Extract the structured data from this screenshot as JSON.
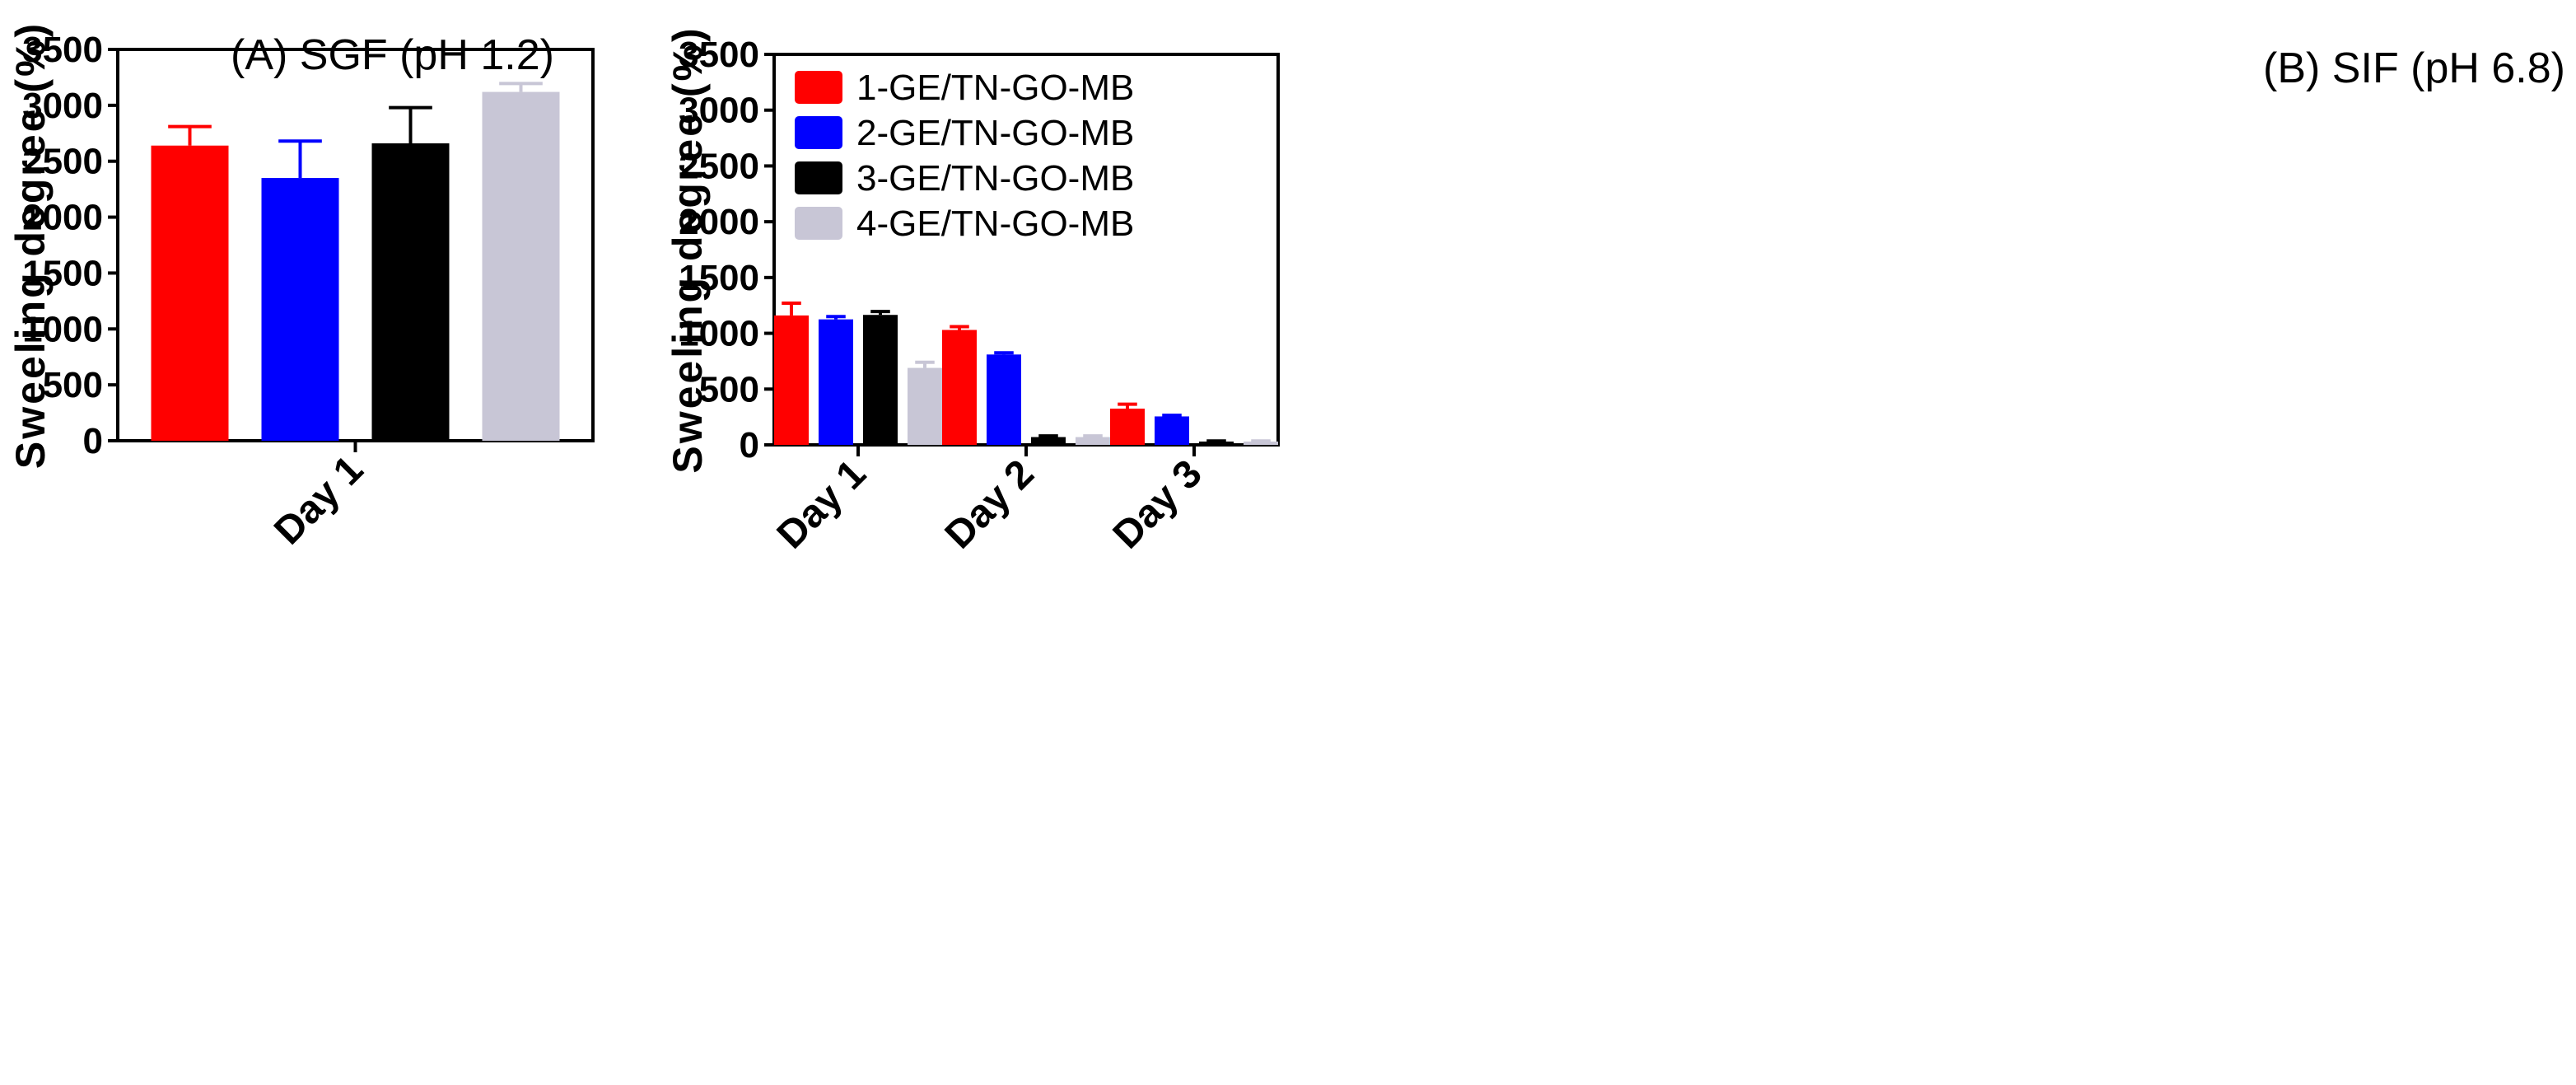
{
  "figure": {
    "panels": [
      {
        "title": "(A) SGF (pH 1.2)"
      },
      {
        "title": "(B) SIF (pH 6.8)"
      }
    ]
  },
  "chart_data": [
    {
      "type": "bar",
      "title": "(A) SGF (pH 1.2)",
      "xlabel": "",
      "ylabel": "Sweeling degree (%)",
      "ylim": [
        0,
        3500
      ],
      "yticks": [
        0,
        500,
        1000,
        1500,
        2000,
        2500,
        3000,
        3500
      ],
      "categories": [
        "Day 1"
      ],
      "series": [
        {
          "name": "1-GE/TN-GO-MB",
          "color": "#ff0000",
          "values": [
            2640
          ],
          "errors": [
            170
          ]
        },
        {
          "name": "2-GE/TN-GO-MB",
          "color": "#0000ff",
          "values": [
            2350
          ],
          "errors": [
            330
          ]
        },
        {
          "name": "3-GE/TN-GO-MB",
          "color": "#000000",
          "values": [
            2660
          ],
          "errors": [
            320
          ]
        },
        {
          "name": "4-GE/TN-GO-MB",
          "color": "#c8c6d6",
          "values": [
            3120
          ],
          "errors": [
            75
          ]
        }
      ],
      "legend": "none",
      "grid": false
    },
    {
      "type": "bar",
      "title": "(B) SIF (pH 6.8)",
      "xlabel": "",
      "ylabel": "Sweeling degree (%)",
      "ylim": [
        0,
        3500
      ],
      "yticks": [
        0,
        500,
        1000,
        1500,
        2000,
        2500,
        3000,
        3500
      ],
      "categories": [
        "Day 1",
        "Day 2",
        "Day 3"
      ],
      "series": [
        {
          "name": "1-GE/TN-GO-MB",
          "color": "#ff0000",
          "values": [
            1160,
            1030,
            325
          ],
          "errors": [
            110,
            30,
            40
          ]
        },
        {
          "name": "2-GE/TN-GO-MB",
          "color": "#0000ff",
          "values": [
            1125,
            810,
            255
          ],
          "errors": [
            25,
            15,
            10
          ]
        },
        {
          "name": "3-GE/TN-GO-MB",
          "color": "#000000",
          "values": [
            1165,
            70,
            30
          ],
          "errors": [
            30,
            10,
            5
          ]
        },
        {
          "name": "4-GE/TN-GO-MB",
          "color": "#c8c6d6",
          "values": [
            690,
            70,
            30
          ],
          "errors": [
            50,
            10,
            5
          ]
        }
      ],
      "legend": "top-left",
      "grid": false
    }
  ]
}
